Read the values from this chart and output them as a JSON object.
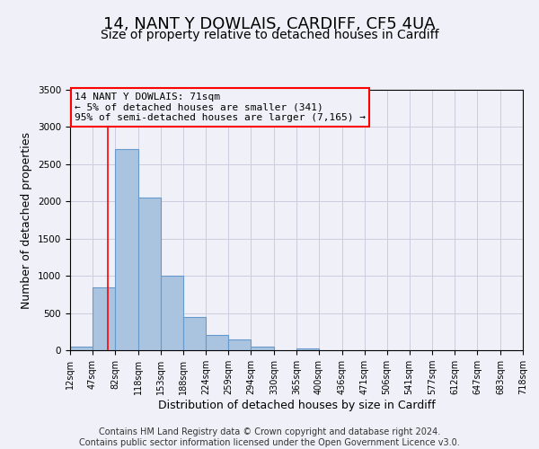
{
  "title": "14, NANT Y DOWLAIS, CARDIFF, CF5 4UA",
  "subtitle": "Size of property relative to detached houses in Cardiff",
  "xlabel": "Distribution of detached houses by size in Cardiff",
  "ylabel": "Number of detached properties",
  "footer_line1": "Contains HM Land Registry data © Crown copyright and database right 2024.",
  "footer_line2": "Contains public sector information licensed under the Open Government Licence v3.0.",
  "bar_left_edges": [
    12,
    47,
    82,
    118,
    153,
    188,
    224,
    259,
    294,
    330,
    365,
    400,
    436,
    471,
    506,
    541,
    577,
    612,
    647,
    683
  ],
  "bar_widths": [
    35,
    35,
    36,
    35,
    35,
    36,
    35,
    35,
    36,
    35,
    35,
    36,
    35,
    35,
    35,
    36,
    35,
    35,
    36,
    35
  ],
  "bar_heights": [
    50,
    850,
    2700,
    2055,
    1005,
    450,
    200,
    150,
    50,
    0,
    30,
    0,
    0,
    0,
    0,
    0,
    0,
    0,
    0,
    0
  ],
  "bar_color": "#aac4e0",
  "bar_edgecolor": "#6699cc",
  "tick_labels": [
    "12sqm",
    "47sqm",
    "82sqm",
    "118sqm",
    "153sqm",
    "188sqm",
    "224sqm",
    "259sqm",
    "294sqm",
    "330sqm",
    "365sqm",
    "400sqm",
    "436sqm",
    "471sqm",
    "506sqm",
    "541sqm",
    "577sqm",
    "612sqm",
    "647sqm",
    "683sqm",
    "718sqm"
  ],
  "tick_positions": [
    12,
    47,
    82,
    118,
    153,
    188,
    224,
    259,
    294,
    330,
    365,
    400,
    436,
    471,
    506,
    541,
    577,
    612,
    647,
    683,
    718
  ],
  "yticks": [
    0,
    500,
    1000,
    1500,
    2000,
    2500,
    3000,
    3500
  ],
  "ylim": [
    0,
    3500
  ],
  "xlim": [
    12,
    718
  ],
  "red_line_x": 71,
  "annotation_text": "14 NANT Y DOWLAIS: 71sqm\n← 5% of detached houses are smaller (341)\n95% of semi-detached houses are larger (7,165) →",
  "background_color": "#f0f0f8",
  "grid_color": "#ccccdd",
  "title_fontsize": 13,
  "subtitle_fontsize": 10,
  "xlabel_fontsize": 9,
  "ylabel_fontsize": 9,
  "tick_fontsize": 7,
  "annotation_fontsize": 8,
  "footer_fontsize": 7
}
